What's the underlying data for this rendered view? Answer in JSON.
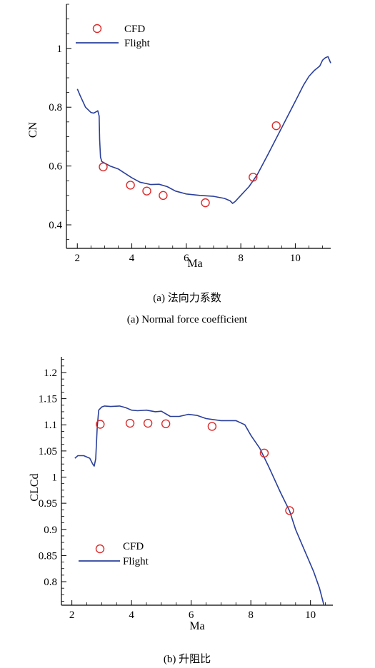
{
  "colors": {
    "cfd_marker": "#d92b2b",
    "flight_line": "#2a3f9b",
    "axis": "#000000"
  },
  "chart_data": [
    {
      "type": "line",
      "caption_cn": "(a) 法向力系数",
      "caption_en": "(a) Normal force coefficient",
      "xlabel": "Ma",
      "ylabel": "CN",
      "xlim": [
        1.6,
        11.3
      ],
      "ylim": [
        0.32,
        1.15
      ],
      "xticks": [
        2,
        4,
        6,
        8,
        10
      ],
      "yticks": [
        0.4,
        0.6,
        0.8,
        1
      ],
      "xtick_labels": [
        "2",
        "4",
        "6",
        "8",
        "10"
      ],
      "ytick_labels": [
        "0.4",
        "0.6",
        "0.8",
        "1"
      ],
      "grid": false,
      "legend_position": "top-left",
      "series": [
        {
          "name": "CFD",
          "kind": "marker",
          "x": [
            2.95,
            3.95,
            4.55,
            5.15,
            6.7,
            8.45,
            9.3
          ],
          "y": [
            0.597,
            0.535,
            0.515,
            0.5,
            0.475,
            0.562,
            0.737
          ]
        },
        {
          "name": "Flight",
          "kind": "line",
          "x": [
            2.0,
            2.1,
            2.3,
            2.5,
            2.6,
            2.7,
            2.75,
            2.8,
            2.82,
            2.85,
            2.9,
            3.0,
            3.2,
            3.5,
            3.7,
            4.0,
            4.3,
            4.7,
            5.0,
            5.3,
            5.6,
            6.0,
            6.5,
            7.0,
            7.4,
            7.6,
            7.7,
            7.8,
            8.0,
            8.3,
            8.6,
            9.0,
            9.5,
            10.0,
            10.3,
            10.5,
            10.7,
            10.9,
            11.0,
            11.1,
            11.2,
            11.3
          ],
          "y": [
            0.862,
            0.84,
            0.8,
            0.782,
            0.78,
            0.785,
            0.788,
            0.77,
            0.69,
            0.63,
            0.615,
            0.61,
            0.6,
            0.59,
            0.578,
            0.56,
            0.545,
            0.537,
            0.538,
            0.53,
            0.515,
            0.505,
            0.5,
            0.497,
            0.49,
            0.482,
            0.473,
            0.48,
            0.5,
            0.53,
            0.57,
            0.64,
            0.73,
            0.82,
            0.875,
            0.905,
            0.925,
            0.94,
            0.96,
            0.968,
            0.972,
            0.95
          ]
        }
      ]
    },
    {
      "type": "line",
      "caption_cn": "(b) 升阻比",
      "xlabel": "Ma",
      "ylabel": "CLCd",
      "xlim": [
        1.65,
        10.75
      ],
      "ylim": [
        0.755,
        1.23
      ],
      "xticks": [
        2,
        4,
        6,
        8,
        10
      ],
      "yticks": [
        0.8,
        0.85,
        0.9,
        0.95,
        1,
        1.05,
        1.1,
        1.15,
        1.2
      ],
      "xtick_labels": [
        "2",
        "4",
        "6",
        "8",
        "10"
      ],
      "ytick_labels": [
        "0.8",
        "0.85",
        "0.9",
        "0.95",
        "1",
        "1.05",
        "1.1",
        "1.15",
        "1.2"
      ],
      "grid": false,
      "legend_position": "bottom-left",
      "series": [
        {
          "name": "CFD",
          "kind": "marker",
          "x": [
            2.95,
            3.95,
            4.55,
            5.15,
            6.7,
            8.45,
            9.3
          ],
          "y": [
            1.101,
            1.103,
            1.103,
            1.102,
            1.097,
            1.046,
            0.936
          ]
        },
        {
          "name": "Flight",
          "kind": "line",
          "x": [
            2.1,
            2.2,
            2.4,
            2.6,
            2.7,
            2.75,
            2.8,
            2.85,
            2.9,
            3.0,
            3.1,
            3.3,
            3.6,
            3.8,
            4.0,
            4.2,
            4.5,
            4.8,
            5.0,
            5.3,
            5.6,
            5.9,
            6.2,
            6.5,
            7.0,
            7.5,
            7.8,
            8.0,
            8.3,
            8.6,
            9.0,
            9.3,
            9.5,
            9.8,
            10.1,
            10.3,
            10.45
          ],
          "y": [
            1.036,
            1.041,
            1.041,
            1.036,
            1.025,
            1.021,
            1.035,
            1.095,
            1.128,
            1.134,
            1.136,
            1.135,
            1.136,
            1.133,
            1.128,
            1.127,
            1.128,
            1.125,
            1.126,
            1.116,
            1.116,
            1.12,
            1.118,
            1.112,
            1.108,
            1.108,
            1.1,
            1.08,
            1.055,
            1.02,
            0.97,
            0.935,
            0.9,
            0.86,
            0.82,
            0.788,
            0.755
          ]
        }
      ]
    }
  ]
}
